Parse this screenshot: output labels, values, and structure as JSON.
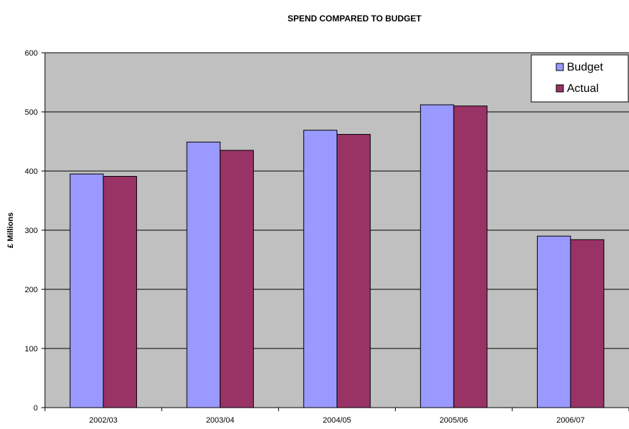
{
  "chart_data": {
    "type": "bar",
    "title": "SPEND COMPARED TO BUDGET",
    "xlabel": "",
    "ylabel": "£ Millions",
    "categories": [
      "2002/03",
      "2003/04",
      "2004/05",
      "2005/06",
      "2006/07"
    ],
    "series": [
      {
        "name": "Budget",
        "color": "#9999ff",
        "values": [
          395,
          449,
          469,
          512,
          290
        ]
      },
      {
        "name": "Actual",
        "color": "#993366",
        "values": [
          391,
          435,
          462,
          510,
          284
        ]
      }
    ],
    "ylim": [
      0,
      600
    ],
    "yticks": [
      0,
      100,
      200,
      300,
      400,
      500,
      600
    ],
    "grid": true,
    "legend_position": "top-right",
    "plot_background": "#c0c0c0"
  }
}
